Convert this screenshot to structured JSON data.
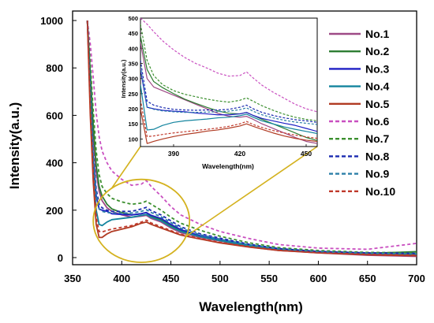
{
  "chart_data": [
    {
      "id": "main",
      "type": "line",
      "title": "",
      "xlabel": "Wavelength(nm)",
      "ylabel": "Intensity(a.u.)",
      "xlim": [
        350,
        700
      ],
      "ylim": [
        -30,
        1040
      ],
      "xticks": [
        350,
        400,
        450,
        500,
        550,
        600,
        650,
        700
      ],
      "yticks": [
        0,
        200,
        400,
        600,
        800,
        1000
      ],
      "legend": "right",
      "highlight_ellipse_color": "#d4b21f",
      "series": [
        {
          "name": "No.1",
          "color": "#9e4a86",
          "dash": "solid",
          "x": [
            365,
            368,
            371,
            374,
            377,
            380,
            385,
            390,
            400,
            410,
            420,
            425,
            430,
            440,
            450,
            460,
            480,
            500,
            530,
            560,
            600,
            650,
            700
          ],
          "y": [
            1000,
            760,
            520,
            360,
            280,
            240,
            210,
            195,
            180,
            170,
            175,
            178,
            165,
            150,
            125,
            105,
            85,
            70,
            45,
            30,
            20,
            10,
            5
          ]
        },
        {
          "name": "No.2",
          "color": "#2e7d32",
          "dash": "solid",
          "x": [
            365,
            368,
            371,
            374,
            377,
            380,
            385,
            390,
            400,
            410,
            420,
            425,
            430,
            440,
            450,
            460,
            480,
            500,
            530,
            560,
            600,
            650,
            700
          ],
          "y": [
            1000,
            780,
            560,
            390,
            300,
            260,
            225,
            205,
            190,
            180,
            185,
            190,
            175,
            160,
            135,
            112,
            90,
            72,
            48,
            32,
            22,
            18,
            25
          ]
        },
        {
          "name": "No.3",
          "color": "#1f1fc4",
          "dash": "solid",
          "x": [
            365,
            368,
            371,
            374,
            377,
            380,
            385,
            390,
            400,
            410,
            420,
            425,
            430,
            440,
            450,
            460,
            480,
            500,
            530,
            560,
            600,
            650,
            700
          ],
          "y": [
            1000,
            700,
            420,
            260,
            205,
            200,
            195,
            185,
            182,
            180,
            185,
            190,
            178,
            165,
            140,
            118,
            92,
            76,
            52,
            36,
            24,
            18,
            15
          ]
        },
        {
          "name": "No.4",
          "color": "#13849e",
          "dash": "solid",
          "x": [
            365,
            368,
            371,
            374,
            377,
            380,
            385,
            390,
            400,
            410,
            420,
            425,
            430,
            440,
            450,
            460,
            480,
            500,
            530,
            560,
            600,
            650,
            700
          ],
          "y": [
            1000,
            680,
            380,
            200,
            140,
            135,
            150,
            160,
            165,
            170,
            178,
            182,
            170,
            155,
            130,
            110,
            88,
            72,
            50,
            34,
            24,
            16,
            12
          ]
        },
        {
          "name": "No.5",
          "color": "#b03a22",
          "dash": "solid",
          "x": [
            365,
            368,
            371,
            374,
            377,
            380,
            385,
            390,
            400,
            410,
            420,
            425,
            430,
            440,
            450,
            460,
            480,
            500,
            530,
            560,
            600,
            650,
            700
          ],
          "y": [
            1000,
            600,
            320,
            140,
            85,
            85,
            100,
            110,
            120,
            130,
            145,
            150,
            140,
            125,
            110,
            95,
            78,
            62,
            44,
            30,
            20,
            12,
            8
          ]
        },
        {
          "name": "No.6",
          "color": "#c94fc0",
          "dash": "dashed",
          "x": [
            365,
            368,
            371,
            374,
            377,
            380,
            385,
            390,
            400,
            410,
            420,
            425,
            430,
            440,
            450,
            460,
            480,
            500,
            530,
            560,
            600,
            650,
            700
          ],
          "y": [
            1000,
            900,
            760,
            610,
            510,
            450,
            400,
            365,
            330,
            305,
            310,
            325,
            300,
            260,
            215,
            180,
            140,
            110,
            80,
            55,
            40,
            35,
            60
          ]
        },
        {
          "name": "No.7",
          "color": "#3b8f2e",
          "dash": "dashed",
          "x": [
            365,
            368,
            371,
            374,
            377,
            380,
            385,
            390,
            400,
            410,
            420,
            425,
            430,
            440,
            450,
            460,
            480,
            500,
            530,
            560,
            600,
            650,
            700
          ],
          "y": [
            1000,
            820,
            620,
            450,
            350,
            300,
            270,
            250,
            235,
            225,
            230,
            238,
            225,
            200,
            170,
            145,
            115,
            90,
            62,
            42,
            30,
            22,
            20
          ]
        },
        {
          "name": "No.8",
          "color": "#1a2ab0",
          "dash": "dashed",
          "x": [
            365,
            368,
            371,
            374,
            377,
            380,
            385,
            390,
            400,
            410,
            420,
            425,
            430,
            440,
            450,
            460,
            480,
            500,
            530,
            560,
            600,
            650,
            700
          ],
          "y": [
            1000,
            720,
            450,
            290,
            225,
            210,
            200,
            195,
            195,
            195,
            205,
            212,
            198,
            180,
            155,
            130,
            100,
            82,
            56,
            38,
            26,
            20,
            18
          ]
        },
        {
          "name": "No.9",
          "color": "#2c7fa8",
          "dash": "dashed",
          "x": [
            365,
            368,
            371,
            374,
            377,
            380,
            385,
            390,
            400,
            410,
            420,
            425,
            430,
            440,
            450,
            460,
            480,
            500,
            530,
            560,
            600,
            650,
            700
          ],
          "y": [
            1000,
            710,
            430,
            270,
            205,
            195,
            190,
            188,
            188,
            188,
            195,
            202,
            190,
            172,
            148,
            124,
            96,
            78,
            54,
            36,
            25,
            18,
            15
          ]
        },
        {
          "name": "No.10",
          "color": "#c0392b",
          "dash": "dashed",
          "x": [
            365,
            368,
            371,
            374,
            377,
            380,
            385,
            390,
            400,
            410,
            420,
            425,
            430,
            440,
            450,
            460,
            480,
            500,
            530,
            560,
            600,
            650,
            700
          ],
          "y": [
            1000,
            640,
            360,
            170,
            110,
            108,
            115,
            120,
            128,
            135,
            150,
            158,
            146,
            130,
            114,
            98,
            80,
            64,
            46,
            31,
            21,
            14,
            10
          ]
        }
      ]
    },
    {
      "id": "inset",
      "type": "line",
      "title": "",
      "xlabel": "Wavelength(nm)",
      "ylabel": "Intensity(a.u.)",
      "xlim": [
        375,
        455
      ],
      "ylim": [
        75,
        500
      ],
      "xticks": [
        390,
        420,
        450
      ],
      "yticks": [
        100,
        150,
        200,
        250,
        300,
        350,
        400,
        450,
        500
      ],
      "series": [
        {
          "name": "No.1",
          "x": [
            375,
            378,
            381,
            385,
            390,
            395,
            400,
            405,
            410,
            415,
            420,
            423,
            426,
            430,
            435,
            440,
            445,
            450,
            455
          ],
          "y": [
            420,
            300,
            272,
            260,
            245,
            230,
            215,
            200,
            185,
            175,
            172,
            175,
            165,
            150,
            135,
            120,
            105,
            92,
            85
          ]
        },
        {
          "name": "No.2",
          "x": [
            375,
            378,
            381,
            385,
            390,
            395,
            400,
            405,
            410,
            415,
            420,
            423,
            426,
            430,
            435,
            440,
            445,
            450,
            455
          ],
          "y": [
            440,
            330,
            290,
            270,
            250,
            232,
            218,
            205,
            193,
            185,
            183,
            188,
            178,
            165,
            150,
            135,
            120,
            105,
            95
          ]
        },
        {
          "name": "No.3",
          "x": [
            375,
            378,
            381,
            385,
            390,
            395,
            400,
            405,
            410,
            415,
            420,
            423,
            426,
            430,
            435,
            440,
            445,
            450,
            455
          ],
          "y": [
            330,
            205,
            200,
            195,
            192,
            190,
            186,
            183,
            180,
            180,
            183,
            188,
            178,
            168,
            160,
            152,
            145,
            135,
            125
          ]
        },
        {
          "name": "No.4",
          "x": [
            375,
            378,
            381,
            385,
            390,
            395,
            400,
            405,
            410,
            415,
            420,
            423,
            426,
            430,
            435,
            440,
            445,
            450,
            455
          ],
          "y": [
            280,
            130,
            132,
            145,
            155,
            160,
            163,
            166,
            170,
            172,
            177,
            182,
            172,
            160,
            150,
            140,
            132,
            125,
            118
          ]
        },
        {
          "name": "No.5",
          "x": [
            375,
            378,
            381,
            385,
            390,
            395,
            400,
            405,
            410,
            415,
            420,
            423,
            426,
            430,
            435,
            440,
            445,
            450,
            455
          ],
          "y": [
            200,
            85,
            92,
            100,
            108,
            115,
            120,
            126,
            130,
            136,
            143,
            150,
            142,
            132,
            120,
            110,
            102,
            96,
            92
          ]
        },
        {
          "name": "No.6",
          "x": [
            375,
            378,
            381,
            385,
            390,
            395,
            400,
            405,
            410,
            415,
            420,
            423,
            426,
            430,
            435,
            440,
            445,
            450,
            455
          ],
          "y": [
            500,
            480,
            455,
            425,
            395,
            370,
            350,
            335,
            318,
            308,
            310,
            322,
            302,
            278,
            255,
            235,
            215,
            200,
            190
          ]
        },
        {
          "name": "No.7",
          "x": [
            375,
            378,
            381,
            385,
            390,
            395,
            400,
            405,
            410,
            415,
            420,
            423,
            426,
            430,
            435,
            440,
            445,
            450,
            455
          ],
          "y": [
            480,
            360,
            310,
            280,
            260,
            248,
            240,
            232,
            226,
            222,
            228,
            236,
            225,
            210,
            195,
            182,
            172,
            165,
            160
          ]
        },
        {
          "name": "No.8",
          "x": [
            375,
            378,
            381,
            385,
            390,
            395,
            400,
            405,
            410,
            415,
            420,
            423,
            426,
            430,
            435,
            440,
            445,
            450,
            455
          ],
          "y": [
            360,
            225,
            212,
            204,
            198,
            196,
            195,
            196,
            196,
            198,
            205,
            212,
            200,
            188,
            178,
            170,
            164,
            160,
            155
          ]
        },
        {
          "name": "No.9",
          "x": [
            375,
            378,
            381,
            385,
            390,
            395,
            400,
            405,
            410,
            415,
            420,
            423,
            426,
            430,
            435,
            440,
            445,
            450,
            455
          ],
          "y": [
            340,
            205,
            198,
            193,
            190,
            188,
            188,
            189,
            190,
            192,
            197,
            203,
            192,
            180,
            170,
            162,
            156,
            152,
            148
          ]
        },
        {
          "name": "No.10",
          "x": [
            375,
            378,
            381,
            385,
            390,
            395,
            400,
            405,
            410,
            415,
            420,
            423,
            426,
            430,
            435,
            440,
            445,
            450,
            455
          ],
          "y": [
            230,
            108,
            110,
            115,
            120,
            124,
            128,
            132,
            136,
            142,
            150,
            158,
            148,
            138,
            128,
            120,
            113,
            107,
            102
          ]
        }
      ]
    }
  ]
}
